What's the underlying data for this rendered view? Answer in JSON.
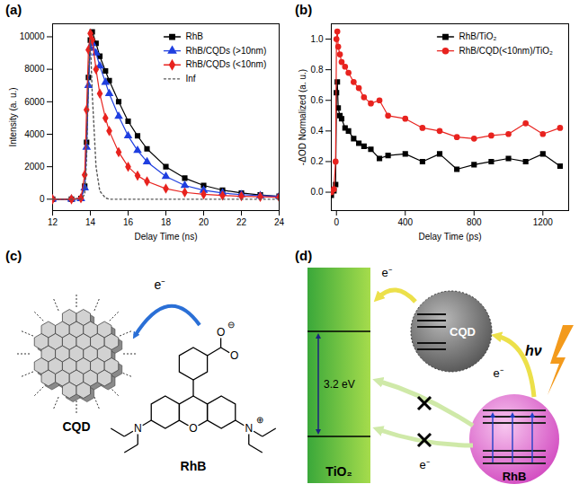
{
  "chart_data": [
    {
      "panel": "(a)",
      "type": "line",
      "x_label": "Delay Time (ns)",
      "y_label": "Intensity (a. u.)",
      "xlim": [
        12,
        24
      ],
      "xticks": [
        12,
        14,
        16,
        18,
        20,
        22,
        24
      ],
      "ylim": [
        -700,
        10800
      ],
      "yticks": [
        0,
        2000,
        4000,
        6000,
        8000,
        10000
      ],
      "legend": "top-right",
      "x": [
        12,
        13,
        13.5,
        13.7,
        13.8,
        13.9,
        14.0,
        14.1,
        14.3,
        14.5,
        14.8,
        15,
        15.5,
        16,
        16.5,
        17,
        18,
        19,
        20,
        21,
        22,
        23,
        24
      ],
      "series": [
        {
          "name": "RhB",
          "color": "#000000",
          "marker": "square",
          "line_style": "solid",
          "values": [
            0,
            0,
            50,
            800,
            3500,
            7500,
            9800,
            10300,
            9600,
            8800,
            7900,
            7300,
            6000,
            4800,
            3900,
            3100,
            2000,
            1300,
            850,
            560,
            380,
            260,
            180
          ]
        },
        {
          "name": "RhB/CQDs (>10nm)",
          "color": "#1f3fe0",
          "marker": "triangle",
          "line_style": "solid",
          "values": [
            0,
            0,
            40,
            700,
            3200,
            7000,
            9300,
            9600,
            9000,
            8200,
            7200,
            6500,
            5100,
            3900,
            3000,
            2300,
            1400,
            850,
            550,
            380,
            280,
            220,
            180
          ]
        },
        {
          "name": "RhB/CQDs (<10nm)",
          "color": "#e8231f",
          "marker": "diamond",
          "line_style": "solid",
          "values": [
            0,
            0,
            60,
            1500,
            5500,
            9200,
            10200,
            9800,
            8000,
            6500,
            5000,
            4200,
            2900,
            2000,
            1450,
            1100,
            650,
            420,
            300,
            230,
            180,
            150,
            120
          ]
        },
        {
          "name": "Inf",
          "color": "#555555",
          "line_style": "dotted",
          "values": [
            0,
            0,
            0,
            300,
            2500,
            7500,
            9800,
            6500,
            2000,
            500,
            80,
            0,
            0,
            0,
            0,
            0,
            0,
            0,
            0,
            0,
            0,
            0,
            0
          ]
        }
      ]
    },
    {
      "panel": "(b)",
      "type": "line",
      "x_label": "Delay Time (ps)",
      "y_label": "-ΔOD Normalized (a. u.)",
      "xlim": [
        -30,
        1350
      ],
      "xticks": [
        0,
        400,
        800,
        1200
      ],
      "ylim": [
        -0.12,
        1.1
      ],
      "yticks": [
        {
          "value": 0,
          "label": "0.0"
        },
        0.2,
        0.4,
        0.6,
        0.8,
        {
          "value": 1,
          "label": "1.0"
        }
      ],
      "legend": "top-right",
      "x": [
        -30,
        -15,
        -5,
        0,
        5,
        10,
        20,
        30,
        50,
        70,
        100,
        130,
        160,
        200,
        250,
        300,
        400,
        500,
        600,
        700,
        800,
        900,
        1000,
        1100,
        1200,
        1300
      ],
      "series": [
        {
          "name": "RhB/TiO₂",
          "color": "#000000",
          "marker": "square",
          "line_style": "solid",
          "values": [
            -0.02,
            0.01,
            0.05,
            0.65,
            0.72,
            0.55,
            0.5,
            0.48,
            0.42,
            0.4,
            0.35,
            0.32,
            0.3,
            0.28,
            0.22,
            0.24,
            0.25,
            0.2,
            0.25,
            0.15,
            0.18,
            0.2,
            0.22,
            0.2,
            0.25,
            0.17
          ]
        },
        {
          "name": "RhB/CQD(<10nm)/TiO₂",
          "color": "#e8231f",
          "marker": "circle",
          "line_style": "solid",
          "values": [
            0.0,
            0.02,
            0.2,
            1.0,
            1.05,
            0.95,
            0.9,
            0.85,
            0.82,
            0.78,
            0.72,
            0.68,
            0.62,
            0.58,
            0.6,
            0.5,
            0.48,
            0.42,
            0.4,
            0.36,
            0.35,
            0.37,
            0.38,
            0.45,
            0.38,
            0.42
          ]
        }
      ]
    }
  ],
  "diagrams": [
    {
      "panel": "(c)",
      "cqd": "CQD",
      "molecule": "RhB",
      "electron": "e⁻",
      "atoms": {
        "ring_oxygen": "O",
        "amine_left": "N",
        "amine_right": "N",
        "charge_plus": "⊕",
        "carbonyl_oxygen": "O",
        "carboxylate_oxygen": "O",
        "charge_minus": "⊖"
      }
    },
    {
      "panel": "(d)",
      "tio2": "TiO₂",
      "band_gap": "3.2 eV",
      "cqd": "CQD",
      "rhb": "RhB",
      "photon": "hν",
      "electron": "e⁻"
    }
  ]
}
